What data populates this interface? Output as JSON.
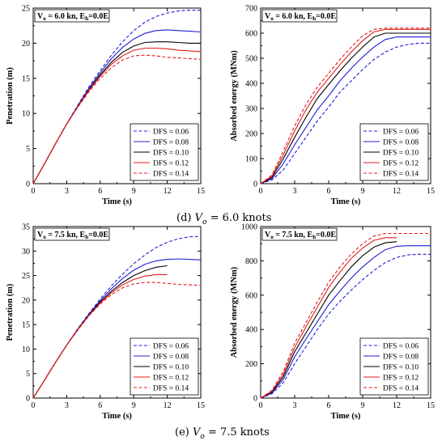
{
  "captions": [
    {
      "letter": "(d)",
      "v": "V",
      "sub": "o",
      "rest": "= 6.0 knots"
    },
    {
      "letter": "(e)",
      "v": "V",
      "sub": "o",
      "rest": "= 7.5 knots"
    }
  ],
  "chart_data": [
    {
      "type": "line",
      "annotation": "V₀ = 6.0 kn, Eₕ=0.0E",
      "ann_main": "V",
      "ann_sub1": "o",
      "ann_mid": " = 6.0 kn, E",
      "ann_sub2": "h",
      "ann_end": "=0.0E",
      "xlabel": "Time (s)",
      "ylabel": "Penetration (m)",
      "xlim": [
        0,
        15
      ],
      "ylim": [
        0,
        25
      ],
      "xticks": [
        0,
        3,
        6,
        9,
        12,
        15
      ],
      "yticks": [
        0,
        5,
        10,
        15,
        20,
        25
      ],
      "legend_position": "bottom-right",
      "series": [
        {
          "name": "DFS = 0.06",
          "color": "#1f1fd6",
          "dash": "dashed",
          "x": [
            0,
            1,
            2,
            3,
            4,
            5,
            6,
            7,
            8,
            9,
            10,
            11,
            12,
            13,
            14,
            15
          ],
          "y": [
            0,
            2.8,
            5.7,
            8.5,
            11.2,
            13.8,
            16.1,
            18.3,
            20.2,
            21.8,
            23.0,
            23.8,
            24.3,
            24.6,
            24.7,
            24.7
          ]
        },
        {
          "name": "DFS = 0.08",
          "color": "#1f1fd6",
          "dash": "solid",
          "x": [
            0,
            1,
            2,
            3,
            4,
            5,
            6,
            7,
            8,
            9,
            10,
            11,
            12,
            13,
            14,
            15
          ],
          "y": [
            0,
            2.8,
            5.7,
            8.5,
            11.1,
            13.6,
            15.8,
            17.8,
            19.4,
            20.6,
            21.4,
            21.8,
            21.9,
            21.8,
            21.7,
            21.6
          ]
        },
        {
          "name": "DFS = 0.10",
          "color": "#000000",
          "dash": "solid",
          "x": [
            0,
            1,
            2,
            3,
            4,
            5,
            6,
            7,
            8,
            9,
            10,
            11,
            12,
            13,
            14,
            15
          ],
          "y": [
            0,
            2.8,
            5.7,
            8.5,
            11.0,
            13.4,
            15.5,
            17.3,
            18.7,
            19.6,
            20.1,
            20.2,
            20.2,
            20.1,
            20.0,
            20.0
          ]
        },
        {
          "name": "DFS = 0.12",
          "color": "#e01c1c",
          "dash": "solid",
          "x": [
            0,
            1,
            2,
            3,
            4,
            5,
            6,
            7,
            8,
            9,
            10,
            11,
            12,
            13,
            14,
            15
          ],
          "y": [
            0,
            2.8,
            5.7,
            8.5,
            11.0,
            13.3,
            15.3,
            17.0,
            18.2,
            19.0,
            19.3,
            19.3,
            19.2,
            19.0,
            18.9,
            18.8
          ]
        },
        {
          "name": "DFS = 0.14",
          "color": "#e01c1c",
          "dash": "dashed",
          "x": [
            0,
            1,
            2,
            3,
            4,
            5,
            6,
            7,
            8,
            9,
            10,
            11,
            12,
            13,
            14,
            15
          ],
          "y": [
            0,
            2.8,
            5.7,
            8.5,
            10.9,
            13.1,
            15.0,
            16.5,
            17.6,
            18.2,
            18.3,
            18.2,
            18.0,
            17.9,
            17.8,
            17.7
          ]
        }
      ]
    },
    {
      "type": "line",
      "annotation": "V₀ = 6.0 kn, Eₕ=0.0E",
      "ann_main": "V",
      "ann_sub1": "o",
      "ann_mid": " = 6.0 kn, E",
      "ann_sub2": "h",
      "ann_end": "=0.0E",
      "xlabel": "Time (s)",
      "ylabel": "Absorbed energy (MNm)",
      "xlim": [
        0,
        15
      ],
      "ylim": [
        0,
        700
      ],
      "xticks": [
        0,
        3,
        6,
        9,
        12,
        15
      ],
      "yticks": [
        0,
        100,
        200,
        300,
        400,
        500,
        600,
        700
      ],
      "legend_position": "bottom-right",
      "series": [
        {
          "name": "DFS = 0.06",
          "color": "#1f1fd6",
          "dash": "dashed",
          "x": [
            0,
            1,
            2,
            3,
            4,
            5,
            6,
            7,
            8,
            9,
            10,
            11,
            12,
            13,
            14,
            15
          ],
          "y": [
            0,
            15,
            55,
            120,
            185,
            250,
            305,
            365,
            410,
            455,
            495,
            525,
            545,
            555,
            560,
            560
          ]
        },
        {
          "name": "DFS = 0.08",
          "color": "#1f1fd6",
          "dash": "solid",
          "x": [
            0,
            1,
            2,
            3,
            4,
            5,
            6,
            7,
            8,
            9,
            10,
            11,
            12,
            13,
            14,
            15
          ],
          "y": [
            0,
            20,
            80,
            155,
            225,
            295,
            350,
            410,
            460,
            505,
            545,
            575,
            585,
            585,
            585,
            585
          ]
        },
        {
          "name": "DFS = 0.10",
          "color": "#000000",
          "dash": "solid",
          "x": [
            0,
            1,
            2,
            3,
            4,
            5,
            6,
            7,
            8,
            9,
            10,
            11,
            12,
            13,
            14,
            15
          ],
          "y": [
            0,
            25,
            100,
            185,
            265,
            340,
            395,
            450,
            500,
            545,
            585,
            600,
            600,
            600,
            600,
            600
          ]
        },
        {
          "name": "DFS = 0.12",
          "color": "#e01c1c",
          "dash": "solid",
          "x": [
            0,
            1,
            2,
            3,
            4,
            5,
            6,
            7,
            8,
            9,
            10,
            11,
            12,
            13,
            14,
            15
          ],
          "y": [
            0,
            30,
            115,
            210,
            295,
            365,
            420,
            475,
            525,
            570,
            605,
            615,
            615,
            615,
            615,
            615
          ]
        },
        {
          "name": "DFS = 0.14",
          "color": "#e01c1c",
          "dash": "dashed",
          "x": [
            0,
            1,
            2,
            3,
            4,
            5,
            6,
            7,
            8,
            9,
            10,
            11,
            12,
            13,
            14,
            15
          ],
          "y": [
            0,
            35,
            130,
            230,
            315,
            385,
            440,
            495,
            545,
            590,
            615,
            620,
            620,
            620,
            620,
            620
          ]
        }
      ]
    },
    {
      "type": "line",
      "annotation": "V₀ = 7.5 kn, Eₕ=0.0E",
      "ann_main": "V",
      "ann_sub1": "o",
      "ann_mid": " = 7.5 kn, E",
      "ann_sub2": "h",
      "ann_end": "=0.0E",
      "xlabel": "Time (s)",
      "ylabel": "Penetration (m)",
      "xlim": [
        0,
        15
      ],
      "ylim": [
        0,
        35
      ],
      "xticks": [
        0,
        3,
        6,
        9,
        12,
        15
      ],
      "yticks": [
        0,
        5,
        10,
        15,
        20,
        25,
        30,
        35
      ],
      "legend_position": "bottom-right",
      "series": [
        {
          "name": "DFS = 0.06",
          "color": "#1f1fd6",
          "dash": "dashed",
          "x": [
            0,
            1,
            2,
            3,
            4,
            5,
            6,
            7,
            8,
            9,
            10,
            11,
            12,
            13,
            14,
            15
          ],
          "y": [
            0,
            3.6,
            7.3,
            10.8,
            14.2,
            17.3,
            20.2,
            22.9,
            25.3,
            27.4,
            29.2,
            30.7,
            31.8,
            32.5,
            32.9,
            33.0
          ]
        },
        {
          "name": "DFS = 0.08",
          "color": "#1f1fd6",
          "dash": "solid",
          "x": [
            0,
            1,
            2,
            3,
            4,
            5,
            6,
            7,
            8,
            9,
            10,
            11,
            12,
            13,
            14,
            15
          ],
          "y": [
            0,
            3.6,
            7.3,
            10.8,
            14.1,
            17.1,
            19.9,
            22.3,
            24.4,
            26.1,
            27.3,
            28.0,
            28.3,
            28.4,
            28.3,
            28.2
          ]
        },
        {
          "name": "DFS = 0.10",
          "color": "#000000",
          "dash": "solid",
          "x": [
            0,
            1,
            2,
            3,
            4,
            5,
            6,
            7,
            8,
            9,
            10,
            11,
            12
          ],
          "y": [
            0,
            3.6,
            7.3,
            10.8,
            14.0,
            17.0,
            19.6,
            21.8,
            23.6,
            25.0,
            26.0,
            26.7,
            27.0
          ]
        },
        {
          "name": "DFS = 0.12",
          "color": "#e01c1c",
          "dash": "solid",
          "x": [
            0,
            1,
            2,
            3,
            4,
            5,
            6,
            7,
            8,
            9,
            10,
            11,
            12
          ],
          "y": [
            0,
            3.6,
            7.3,
            10.8,
            14.0,
            16.9,
            19.4,
            21.5,
            23.1,
            24.2,
            24.9,
            25.2,
            25.2
          ]
        },
        {
          "name": "DFS = 0.14",
          "color": "#e01c1c",
          "dash": "dashed",
          "x": [
            0,
            1,
            2,
            3,
            4,
            5,
            6,
            7,
            8,
            9,
            10,
            11,
            12,
            13,
            14,
            15
          ],
          "y": [
            0,
            3.6,
            7.3,
            10.8,
            13.9,
            16.8,
            19.2,
            21.1,
            22.5,
            23.3,
            23.6,
            23.6,
            23.4,
            23.2,
            23.1,
            23.0
          ]
        }
      ]
    },
    {
      "type": "line",
      "annotation": "V₀ = 7.5 kn, Eₕ=0.0E",
      "ann_main": "V",
      "ann_sub1": "o",
      "ann_mid": " = 7.5 kn, E",
      "ann_sub2": "h",
      "ann_end": "=0.0E",
      "xlabel": "Time (s)",
      "ylabel": "Absorbed energy (MNm)",
      "xlim": [
        0,
        15
      ],
      "ylim": [
        0,
        1000
      ],
      "xticks": [
        0,
        3,
        6,
        9,
        12,
        15
      ],
      "yticks": [
        0,
        200,
        400,
        600,
        800,
        1000
      ],
      "legend_position": "bottom-right",
      "series": [
        {
          "name": "DFS = 0.06",
          "color": "#1f1fd6",
          "dash": "dashed",
          "x": [
            0,
            1,
            2,
            3,
            4,
            5,
            6,
            7,
            8,
            9,
            10,
            11,
            12,
            13,
            14,
            15
          ],
          "y": [
            0,
            25,
            90,
            200,
            300,
            400,
            490,
            565,
            630,
            690,
            745,
            790,
            820,
            835,
            838,
            838
          ]
        },
        {
          "name": "DFS = 0.08",
          "color": "#1f1fd6",
          "dash": "solid",
          "x": [
            0,
            1,
            2,
            3,
            4,
            5,
            6,
            7,
            8,
            9,
            10,
            11,
            12,
            13,
            14,
            15
          ],
          "y": [
            0,
            30,
            110,
            240,
            345,
            445,
            545,
            625,
            700,
            765,
            820,
            865,
            885,
            888,
            888,
            888
          ]
        },
        {
          "name": "DFS = 0.10",
          "color": "#000000",
          "dash": "solid",
          "x": [
            0,
            1,
            2,
            3,
            4,
            5,
            6,
            7,
            8,
            9,
            10,
            11,
            12
          ],
          "y": [
            0,
            35,
            125,
            270,
            380,
            490,
            600,
            685,
            765,
            830,
            880,
            905,
            912
          ]
        },
        {
          "name": "DFS = 0.12",
          "color": "#e01c1c",
          "dash": "solid",
          "x": [
            0,
            1,
            2,
            3,
            4,
            5,
            6,
            7,
            8,
            9,
            10,
            11,
            12
          ],
          "y": [
            0,
            40,
            140,
            295,
            415,
            530,
            645,
            735,
            815,
            875,
            920,
            935,
            935
          ]
        },
        {
          "name": "DFS = 0.14",
          "color": "#e01c1c",
          "dash": "dashed",
          "x": [
            0,
            1,
            2,
            3,
            4,
            5,
            6,
            7,
            8,
            9,
            10,
            11,
            12,
            13,
            14,
            15
          ],
          "y": [
            0,
            45,
            155,
            320,
            440,
            560,
            675,
            765,
            840,
            900,
            945,
            960,
            960,
            960,
            960,
            960
          ]
        }
      ]
    }
  ]
}
